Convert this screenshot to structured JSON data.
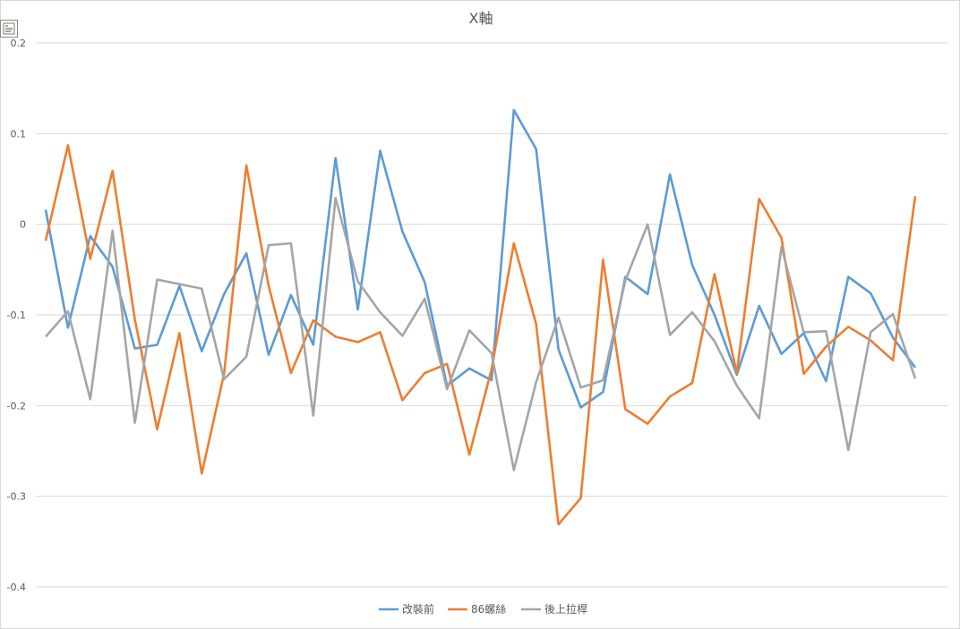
{
  "chart_data": {
    "type": "line",
    "title": "X軸",
    "xlabel": "",
    "ylabel": "",
    "ylim": [
      -0.4,
      0.2
    ],
    "yticks": [
      "0.2",
      "0.1",
      "0",
      "-0.1",
      "-0.2",
      "-0.3",
      "-0.4"
    ],
    "grid": true,
    "legend_position": "bottom",
    "series": [
      {
        "name": "改裝前",
        "color": "#5B9BD5",
        "values": [
          0.016,
          -0.114,
          -0.013,
          -0.047,
          -0.137,
          -0.133,
          -0.068,
          -0.14,
          -0.077,
          -0.032,
          -0.144,
          -0.078,
          -0.133,
          0.073,
          -0.094,
          0.081,
          -0.008,
          -0.064,
          -0.178,
          -0.159,
          -0.172,
          0.126,
          0.083,
          -0.138,
          -0.202,
          -0.185,
          -0.058,
          -0.077,
          0.055,
          -0.045,
          -0.1,
          -0.166,
          -0.09,
          -0.143,
          -0.12,
          -0.173,
          -0.058,
          -0.076,
          -0.125,
          -0.158
        ]
      },
      {
        "name": "86螺絲",
        "color": "#ED7D31",
        "values": [
          -0.018,
          0.087,
          -0.038,
          0.059,
          -0.105,
          -0.226,
          -0.12,
          -0.275,
          -0.165,
          0.065,
          -0.068,
          -0.164,
          -0.106,
          -0.124,
          -0.13,
          -0.119,
          -0.194,
          -0.164,
          -0.154,
          -0.254,
          -0.16,
          -0.021,
          -0.11,
          -0.331,
          -0.302,
          -0.039,
          -0.204,
          -0.22,
          -0.19,
          -0.175,
          -0.055,
          -0.164,
          0.028,
          -0.015,
          -0.165,
          -0.135,
          -0.113,
          -0.128,
          -0.15,
          0.031
        ]
      },
      {
        "name": "後上拉桿",
        "color": "#A5A5A5",
        "values": [
          -0.124,
          -0.096,
          -0.193,
          -0.007,
          -0.219,
          -0.061,
          -0.066,
          -0.071,
          -0.171,
          -0.146,
          -0.023,
          -0.021,
          -0.211,
          0.029,
          -0.063,
          -0.097,
          -0.123,
          -0.082,
          -0.182,
          -0.117,
          -0.142,
          -0.271,
          -0.174,
          -0.103,
          -0.18,
          -0.172,
          -0.062,
          0.0,
          -0.122,
          -0.097,
          -0.129,
          -0.178,
          -0.214,
          -0.025,
          -0.119,
          -0.118,
          -0.249,
          -0.119,
          -0.099,
          -0.17
        ]
      }
    ]
  }
}
